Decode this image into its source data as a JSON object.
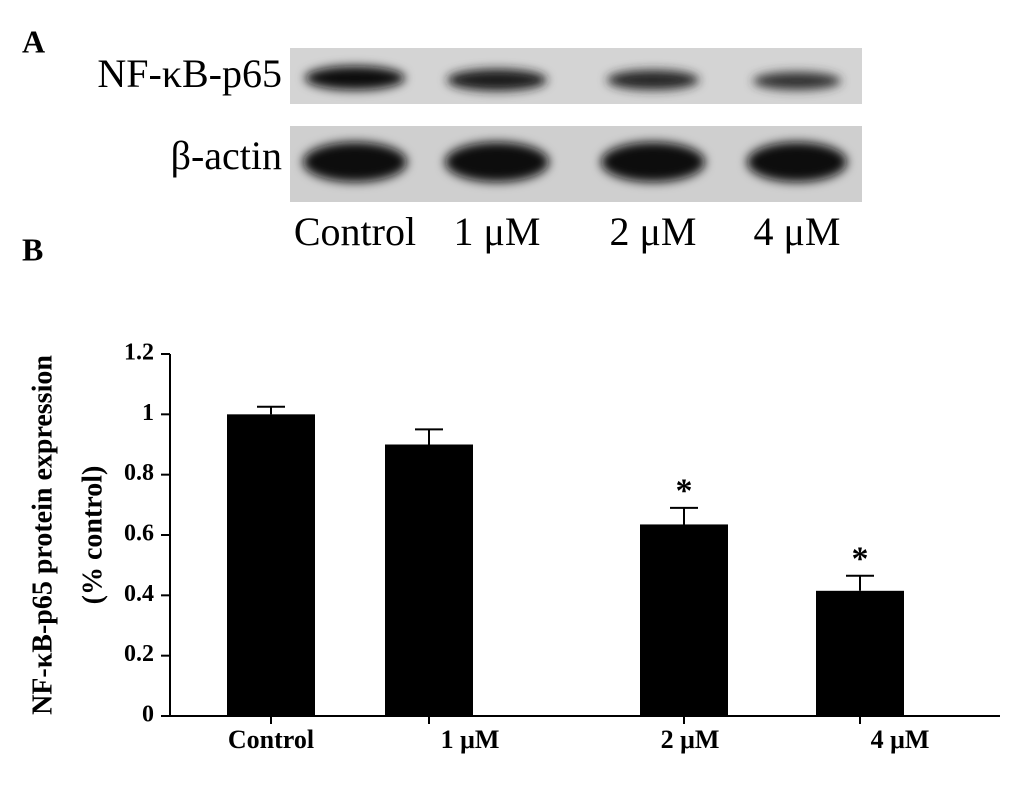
{
  "panel_a": {
    "label": "A",
    "rows": [
      "NF-κB-p65",
      "β-actin"
    ],
    "lanes": [
      "Control",
      "1 μM",
      "2 μM",
      "4 μM"
    ]
  },
  "chart_data": {
    "type": "bar",
    "panel_label": "B",
    "ylabel": [
      "NF-κB-p65 protein expression",
      "(% control)"
    ],
    "categories": [
      "Control",
      "1 μM",
      "2 μM",
      "4 μM"
    ],
    "values": [
      1.0,
      0.9,
      0.635,
      0.415
    ],
    "errors": [
      0.025,
      0.05,
      0.055,
      0.05
    ],
    "significance": [
      null,
      null,
      "*",
      "*"
    ],
    "color": "#000000",
    "ylim": [
      0,
      1.2
    ],
    "yticks": [
      0,
      0.2,
      0.4,
      0.6,
      0.8,
      1,
      1.2
    ]
  }
}
